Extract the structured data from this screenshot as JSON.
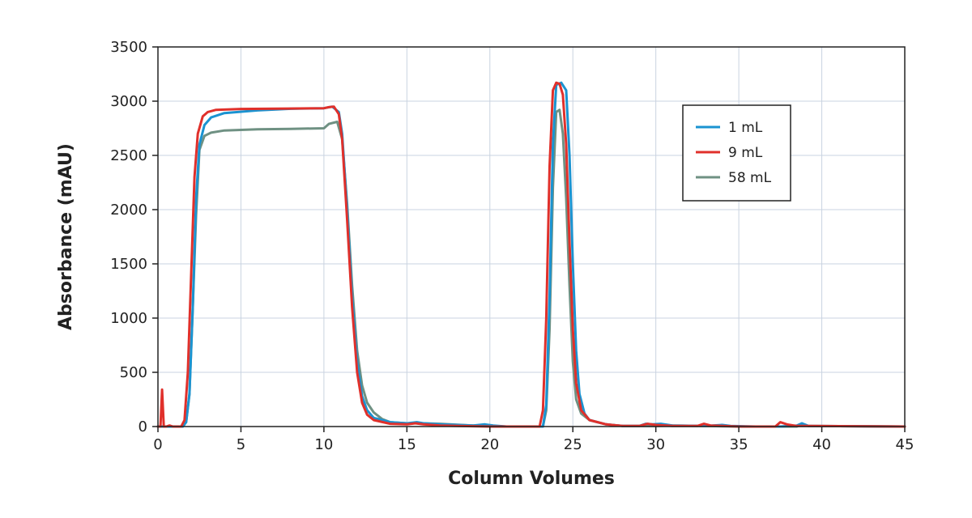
{
  "chart_data": {
    "type": "line",
    "title": "",
    "xlabel": "Column Volumes",
    "ylabel": "Absorbance (mAU)",
    "xlim": [
      0,
      45
    ],
    "ylim": [
      0,
      3500
    ],
    "xticks": [
      0,
      5,
      10,
      15,
      20,
      25,
      30,
      35,
      40,
      45
    ],
    "yticks": [
      0,
      500,
      1000,
      1500,
      2000,
      2500,
      3000,
      3500
    ],
    "grid": true,
    "legend_position": "top-right",
    "series": [
      {
        "name": "1 mL",
        "color": "#1a93d1",
        "points": [
          [
            0,
            0
          ],
          [
            1.5,
            0
          ],
          [
            1.7,
            40
          ],
          [
            1.9,
            300
          ],
          [
            2.1,
            1100
          ],
          [
            2.3,
            2100
          ],
          [
            2.5,
            2600
          ],
          [
            2.8,
            2780
          ],
          [
            3.2,
            2850
          ],
          [
            4,
            2890
          ],
          [
            6,
            2915
          ],
          [
            8,
            2930
          ],
          [
            10,
            2935
          ],
          [
            10.5,
            2950
          ],
          [
            10.9,
            2900
          ],
          [
            11.1,
            2700
          ],
          [
            11.4,
            2000
          ],
          [
            11.7,
            1200
          ],
          [
            12.0,
            600
          ],
          [
            12.3,
            280
          ],
          [
            12.6,
            150
          ],
          [
            13,
            80
          ],
          [
            14,
            40
          ],
          [
            15,
            30
          ],
          [
            15.6,
            40
          ],
          [
            16,
            30
          ],
          [
            17,
            20
          ],
          [
            19,
            10
          ],
          [
            19.7,
            20
          ],
          [
            20.2,
            10
          ],
          [
            21,
            0
          ],
          [
            23.2,
            0
          ],
          [
            23.4,
            200
          ],
          [
            23.6,
            1200
          ],
          [
            23.8,
            2600
          ],
          [
            24.0,
            3150
          ],
          [
            24.3,
            3170
          ],
          [
            24.6,
            3100
          ],
          [
            24.8,
            2500
          ],
          [
            25.0,
            1500
          ],
          [
            25.2,
            700
          ],
          [
            25.4,
            300
          ],
          [
            25.7,
            120
          ],
          [
            26,
            60
          ],
          [
            27,
            20
          ],
          [
            28,
            5
          ],
          [
            29,
            5
          ],
          [
            29.4,
            25
          ],
          [
            29.8,
            20
          ],
          [
            30.3,
            25
          ],
          [
            31,
            10
          ],
          [
            33,
            5
          ],
          [
            34,
            15
          ],
          [
            34.5,
            5
          ],
          [
            36,
            0
          ],
          [
            37.5,
            0
          ],
          [
            38.5,
            10
          ],
          [
            38.8,
            30
          ],
          [
            39.2,
            5
          ],
          [
            45,
            0
          ]
        ]
      },
      {
        "name": "9 mL",
        "color": "#e0302b",
        "points": [
          [
            0,
            0
          ],
          [
            0.15,
            0
          ],
          [
            0.25,
            340
          ],
          [
            0.35,
            0
          ],
          [
            0.5,
            0
          ],
          [
            0.7,
            10
          ],
          [
            0.9,
            0
          ],
          [
            1.4,
            0
          ],
          [
            1.6,
            60
          ],
          [
            1.8,
            500
          ],
          [
            2.0,
            1400
          ],
          [
            2.2,
            2300
          ],
          [
            2.4,
            2700
          ],
          [
            2.7,
            2860
          ],
          [
            3.0,
            2900
          ],
          [
            3.5,
            2920
          ],
          [
            5,
            2928
          ],
          [
            8,
            2932
          ],
          [
            10,
            2935
          ],
          [
            10.3,
            2945
          ],
          [
            10.6,
            2950
          ],
          [
            10.9,
            2880
          ],
          [
            11.1,
            2650
          ],
          [
            11.4,
            1900
          ],
          [
            11.7,
            1100
          ],
          [
            12.0,
            500
          ],
          [
            12.3,
            220
          ],
          [
            12.6,
            110
          ],
          [
            13,
            60
          ],
          [
            14,
            25
          ],
          [
            15,
            20
          ],
          [
            15.5,
            30
          ],
          [
            16,
            20
          ],
          [
            17,
            10
          ],
          [
            18,
            5
          ],
          [
            20,
            0
          ],
          [
            23.0,
            0
          ],
          [
            23.2,
            150
          ],
          [
            23.4,
            1000
          ],
          [
            23.6,
            2400
          ],
          [
            23.8,
            3100
          ],
          [
            24.0,
            3170
          ],
          [
            24.2,
            3160
          ],
          [
            24.4,
            3060
          ],
          [
            24.6,
            2600
          ],
          [
            24.8,
            1700
          ],
          [
            25.0,
            900
          ],
          [
            25.2,
            400
          ],
          [
            25.5,
            150
          ],
          [
            26,
            60
          ],
          [
            27,
            20
          ],
          [
            28,
            5
          ],
          [
            29,
            5
          ],
          [
            29.5,
            25
          ],
          [
            30,
            15
          ],
          [
            31,
            5
          ],
          [
            32.5,
            5
          ],
          [
            32.9,
            25
          ],
          [
            33.3,
            10
          ],
          [
            35,
            0
          ],
          [
            37.2,
            0
          ],
          [
            37.5,
            40
          ],
          [
            37.9,
            20
          ],
          [
            38.5,
            5
          ],
          [
            39,
            5
          ],
          [
            45,
            0
          ]
        ]
      },
      {
        "name": "58 mL",
        "color": "#6f9183",
        "points": [
          [
            0,
            0
          ],
          [
            1.5,
            0
          ],
          [
            1.7,
            40
          ],
          [
            1.9,
            300
          ],
          [
            2.1,
            1100
          ],
          [
            2.3,
            1950
          ],
          [
            2.5,
            2550
          ],
          [
            2.8,
            2680
          ],
          [
            3.2,
            2710
          ],
          [
            4,
            2730
          ],
          [
            6,
            2740
          ],
          [
            8,
            2745
          ],
          [
            10,
            2750
          ],
          [
            10.3,
            2790
          ],
          [
            10.8,
            2810
          ],
          [
            11.1,
            2650
          ],
          [
            11.4,
            2050
          ],
          [
            11.7,
            1300
          ],
          [
            12.0,
            700
          ],
          [
            12.3,
            380
          ],
          [
            12.6,
            220
          ],
          [
            13,
            130
          ],
          [
            13.5,
            70
          ],
          [
            14,
            40
          ],
          [
            15,
            30
          ],
          [
            16,
            30
          ],
          [
            17,
            25
          ],
          [
            19,
            10
          ],
          [
            21,
            0
          ],
          [
            23.2,
            0
          ],
          [
            23.4,
            150
          ],
          [
            23.6,
            900
          ],
          [
            23.8,
            2200
          ],
          [
            24.0,
            2900
          ],
          [
            24.2,
            2920
          ],
          [
            24.4,
            2700
          ],
          [
            24.6,
            2100
          ],
          [
            24.8,
            1300
          ],
          [
            25.0,
            600
          ],
          [
            25.2,
            250
          ],
          [
            25.5,
            120
          ],
          [
            26,
            60
          ],
          [
            27,
            20
          ],
          [
            28,
            5
          ],
          [
            30,
            5
          ],
          [
            31,
            10
          ],
          [
            33,
            5
          ],
          [
            35,
            0
          ],
          [
            38.5,
            0
          ],
          [
            38.8,
            20
          ],
          [
            39.2,
            5
          ],
          [
            45,
            0
          ]
        ]
      }
    ]
  }
}
